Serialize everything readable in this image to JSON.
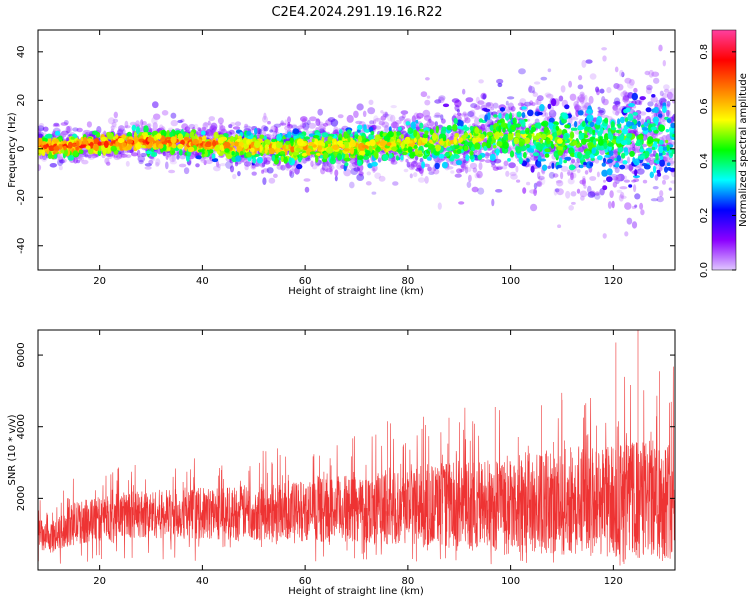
{
  "figure": {
    "title": "C2E4.2024.291.19.16.R22"
  },
  "chart_data": [
    {
      "type": "scatter",
      "xlabel": "Height of straight line (km)",
      "ylabel": "Frequency (Hz)",
      "xlim": [
        8,
        132
      ],
      "ylim": [
        -50,
        49
      ],
      "xticks": [
        20,
        40,
        60,
        80,
        100,
        120
      ],
      "yticks": [
        -40,
        -20,
        0,
        20,
        40
      ],
      "grid": false,
      "trend_points": [
        {
          "x": 8,
          "y": 1
        },
        {
          "x": 15,
          "y": 1
        },
        {
          "x": 20,
          "y": 2
        },
        {
          "x": 28,
          "y": 3
        },
        {
          "x": 35,
          "y": 3
        },
        {
          "x": 40,
          "y": 2
        },
        {
          "x": 48,
          "y": 1
        },
        {
          "x": 55,
          "y": 0
        },
        {
          "x": 60,
          "y": 0
        },
        {
          "x": 70,
          "y": 1
        },
        {
          "x": 80,
          "y": 2
        },
        {
          "x": 90,
          "y": 3
        },
        {
          "x": 100,
          "y": 6
        },
        {
          "x": 110,
          "y": 3
        },
        {
          "x": 120,
          "y": 4
        },
        {
          "x": 132,
          "y": 4
        }
      ],
      "spread_points": [
        {
          "x": 8,
          "y": 5
        },
        {
          "x": 30,
          "y": 6
        },
        {
          "x": 60,
          "y": 8
        },
        {
          "x": 80,
          "y": 10
        },
        {
          "x": 100,
          "y": 14
        },
        {
          "x": 115,
          "y": 18
        },
        {
          "x": 132,
          "y": 20
        }
      ],
      "colorbar": {
        "label": "Normalized spectral amplitude",
        "range": [
          0,
          0.88
        ],
        "ticks": [
          "0.0",
          "0.2",
          "0.4",
          "0.6",
          "0.8"
        ],
        "tick_values": [
          0,
          0.2,
          0.4,
          0.6,
          0.8
        ],
        "colors": [
          "#e0c8ff",
          "#8b00ff",
          "#0000ff",
          "#00ffff",
          "#00ff00",
          "#ffff00",
          "#ff7f00",
          "#ff0000",
          "#ff3fa0"
        ]
      }
    },
    {
      "type": "line",
      "xlabel": "Height of straight line (km)",
      "ylabel": "SNR (10 * v/v)",
      "xlim": [
        8,
        132
      ],
      "ylim": [
        0,
        6700
      ],
      "xticks": [
        20,
        40,
        60,
        80,
        100,
        120
      ],
      "yticks": [
        2000,
        4000,
        6000
      ],
      "color": "#ee3333",
      "envelope_points": [
        {
          "x": 8,
          "low": 500,
          "high": 1500
        },
        {
          "x": 10,
          "low": 450,
          "high": 1200
        },
        {
          "x": 15,
          "low": 700,
          "high": 1900
        },
        {
          "x": 25,
          "low": 900,
          "high": 2200
        },
        {
          "x": 40,
          "low": 850,
          "high": 2300
        },
        {
          "x": 60,
          "low": 800,
          "high": 2500
        },
        {
          "x": 80,
          "low": 700,
          "high": 2900
        },
        {
          "x": 100,
          "low": 500,
          "high": 3200
        },
        {
          "x": 115,
          "low": 400,
          "high": 3500
        },
        {
          "x": 132,
          "low": 300,
          "high": 3700
        }
      ],
      "peaks": [
        {
          "x": 120.5,
          "y": 6350
        },
        {
          "x": 124.8,
          "y": 6700
        },
        {
          "x": 129,
          "y": 5550
        },
        {
          "x": 110,
          "y": 4750
        },
        {
          "x": 106,
          "y": 4600
        },
        {
          "x": 76,
          "y": 4150
        },
        {
          "x": 88,
          "y": 4250
        },
        {
          "x": 97,
          "y": 4550
        }
      ]
    }
  ]
}
